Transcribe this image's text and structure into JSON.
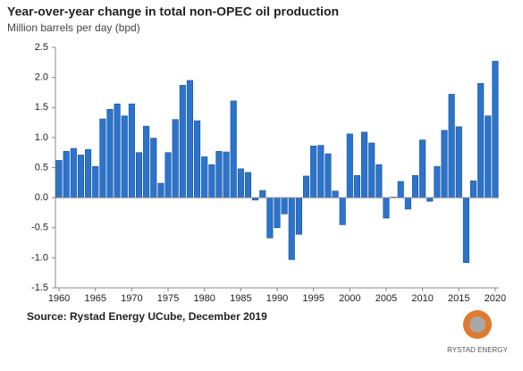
{
  "chart_data": {
    "type": "bar",
    "title": "Year-over-year change in total non-OPEC oil production",
    "subtitle": "Million barrels per day (bpd)",
    "source": "Source: Rystad Energy UCube, December 2019",
    "logo_text": "RYSTAD ENERGY",
    "color": "#2b74cc",
    "x": [
      1960,
      1961,
      1962,
      1963,
      1964,
      1965,
      1966,
      1967,
      1968,
      1969,
      1970,
      1971,
      1972,
      1973,
      1974,
      1975,
      1976,
      1977,
      1978,
      1979,
      1980,
      1981,
      1982,
      1983,
      1984,
      1985,
      1986,
      1987,
      1988,
      1989,
      1990,
      1991,
      1992,
      1993,
      1994,
      1995,
      1996,
      1997,
      1998,
      1999,
      2000,
      2001,
      2002,
      2003,
      2004,
      2005,
      2006,
      2007,
      2008,
      2009,
      2010,
      2011,
      2012,
      2013,
      2014,
      2015,
      2016,
      2017,
      2018,
      2019,
      2020
    ],
    "values": [
      0.62,
      0.77,
      0.82,
      0.71,
      0.8,
      0.52,
      1.31,
      1.47,
      1.56,
      1.36,
      1.56,
      0.75,
      1.19,
      0.99,
      0.24,
      0.75,
      1.3,
      1.87,
      1.95,
      1.28,
      0.68,
      0.55,
      0.77,
      0.76,
      1.61,
      0.48,
      0.42,
      -0.04,
      0.12,
      -0.67,
      -0.5,
      -0.27,
      -1.03,
      -0.61,
      0.36,
      0.86,
      0.87,
      0.73,
      0.11,
      -0.45,
      1.06,
      0.37,
      1.09,
      0.91,
      0.55,
      -0.34,
      0.01,
      0.27,
      -0.19,
      0.37,
      0.96,
      -0.06,
      0.52,
      1.12,
      1.72,
      1.18,
      -1.08,
      0.28,
      1.9,
      1.36,
      2.27
    ],
    "xlim": [
      1959.5,
      2020.5
    ],
    "xticks": [
      1960,
      1965,
      1970,
      1975,
      1980,
      1985,
      1990,
      1995,
      2000,
      2005,
      2010,
      2015,
      2020
    ],
    "ylim": [
      -1.5,
      2.5
    ],
    "yticks": [
      {
        "value": -1.5,
        "label": "-1.5"
      },
      {
        "value": -1,
        "label": "-1.0"
      },
      -0.5,
      {
        "value": 0,
        "label": "0.0"
      },
      0.5,
      {
        "value": 1,
        "label": "1.0"
      },
      1.5,
      {
        "value": 2,
        "label": "2.0"
      },
      2.5
    ],
    "grid": false
  }
}
